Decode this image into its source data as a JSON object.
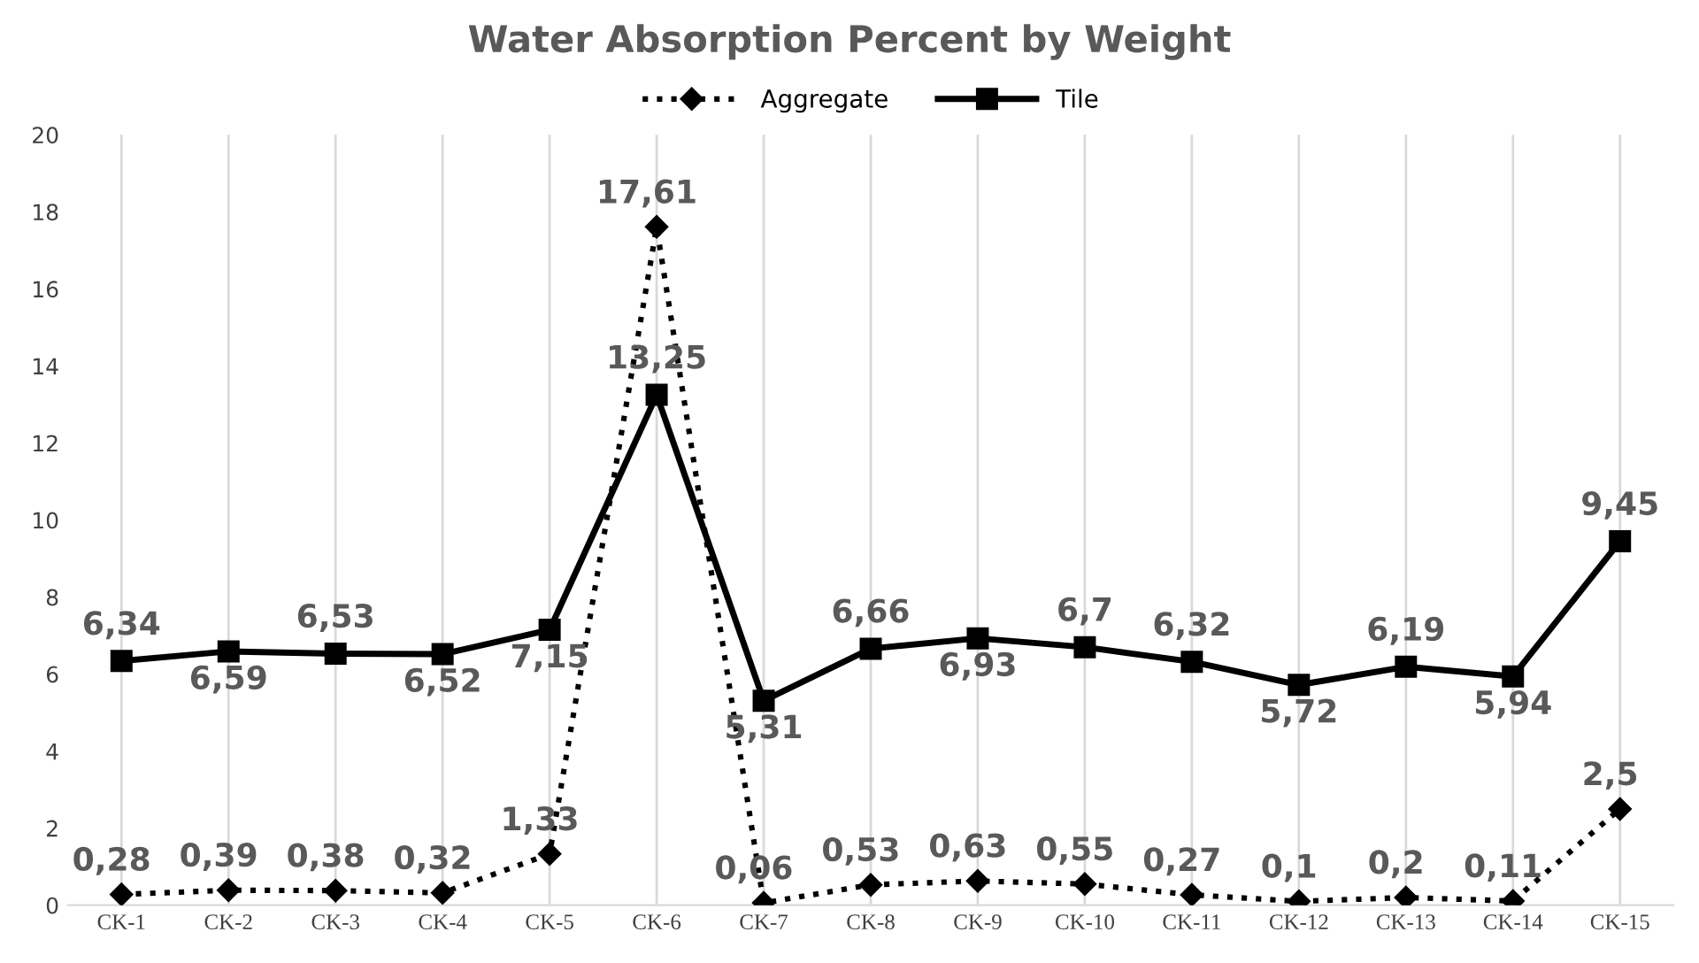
{
  "chart_data": {
    "type": "line",
    "title": "Water Absorption Percent by Weight",
    "categories": [
      "CK-1",
      "CK-2",
      "CK-3",
      "CK-4",
      "CK-5",
      "CK-6",
      "CK-7",
      "CK-8",
      "CK-9",
      "CK-10",
      "CK-11",
      "CK-12",
      "CK-13",
      "CK-14",
      "CK-15"
    ],
    "series": [
      {
        "name": "Aggregate",
        "color": "#000000",
        "marker": "diamond",
        "line_style": "dotted",
        "values": [
          0.28,
          0.39,
          0.38,
          0.32,
          1.33,
          17.61,
          0.06,
          0.53,
          0.63,
          0.55,
          0.27,
          0.1,
          0.2,
          0.11,
          2.5
        ],
        "value_labels": [
          "0,28",
          "0,39",
          "0,38",
          "0,32",
          "1,33",
          "17,61",
          "0,06",
          "0,53",
          "0,63",
          "0,55",
          "0,27",
          "0,1",
          "0,2",
          "0,11",
          "2,5"
        ]
      },
      {
        "name": "Tile",
        "color": "#000000",
        "marker": "square",
        "line_style": "solid",
        "values": [
          6.34,
          6.59,
          6.53,
          6.52,
          7.15,
          13.25,
          5.31,
          6.66,
          6.93,
          6.7,
          6.32,
          5.72,
          6.19,
          5.94,
          9.45
        ],
        "value_labels": [
          "6,34",
          "6,59",
          "6,53",
          "6,52",
          "7,15",
          "13,25",
          "5,31",
          "6,66",
          "6,93",
          "6,7",
          "6,32",
          "5,72",
          "6,19",
          "5,94",
          "9,45"
        ]
      }
    ],
    "ylim": [
      0,
      20
    ],
    "yticks": [
      0,
      2,
      4,
      6,
      8,
      10,
      12,
      14,
      16,
      18,
      20
    ],
    "grid": "x",
    "legend": "top"
  }
}
